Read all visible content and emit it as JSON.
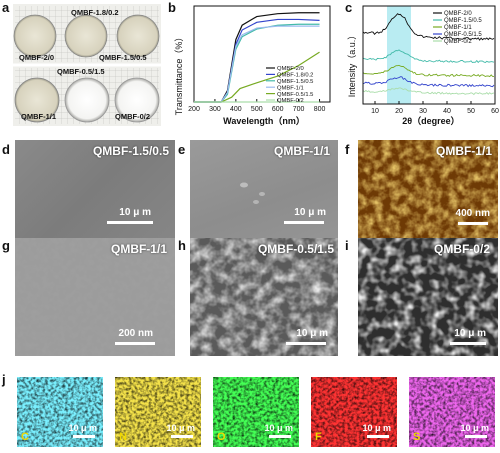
{
  "panel_letters": {
    "a": "a",
    "b": "b",
    "c": "c",
    "d": "d",
    "e": "e",
    "f": "f",
    "g": "g",
    "h": "h",
    "i": "i",
    "j": "j"
  },
  "panel_a": {
    "dishes": [
      "QMBF-1.8/0.2",
      "QMBF-2/0",
      "QMBF-1.5/0.5",
      "QMBF-0.5/1.5",
      "QMBF-1/1",
      "QMBF-0/2"
    ]
  },
  "chart_data": [
    {
      "type": "line",
      "panel": "b",
      "xlabel": "Wavelength（nm）",
      "ylabel": "Transmittance（%）",
      "xlim": [
        200,
        850
      ],
      "xticks": [
        "200",
        "300",
        "400",
        "500",
        "600",
        "700",
        "800"
      ],
      "ylim": [
        0,
        100
      ],
      "legend": "bottom-right",
      "series": [
        {
          "name": "QMBF-2/0",
          "color": "#111111",
          "x": [
            200,
            330,
            360,
            400,
            430,
            500,
            600,
            700,
            800
          ],
          "y": [
            0,
            0,
            12,
            65,
            80,
            89,
            92,
            93,
            93
          ]
        },
        {
          "name": "QMBF-1.8/0.2",
          "color": "#3344cc",
          "x": [
            200,
            330,
            360,
            400,
            430,
            500,
            600,
            700,
            800
          ],
          "y": [
            0,
            0,
            10,
            60,
            75,
            83,
            86,
            86,
            85
          ]
        },
        {
          "name": "QMBF-1.5/0.5",
          "color": "#44bbaa",
          "x": [
            200,
            330,
            360,
            400,
            430,
            500,
            600,
            700,
            800
          ],
          "y": [
            0,
            0,
            8,
            55,
            68,
            76,
            80,
            81,
            81
          ]
        },
        {
          "name": "QMBF-1/1",
          "color": "#99bbee",
          "x": [
            200,
            330,
            360,
            400,
            430,
            500,
            600,
            700,
            800
          ],
          "y": [
            0,
            0,
            10,
            58,
            70,
            77,
            79,
            79,
            79
          ]
        },
        {
          "name": "QMBF-0.5/1.5",
          "color": "#77aa22",
          "x": [
            200,
            330,
            380,
            420,
            500,
            600,
            700,
            800
          ],
          "y": [
            0,
            0,
            5,
            14,
            20,
            27,
            38,
            52
          ]
        },
        {
          "name": "QMBF-0/2",
          "color": "#aaddaa",
          "x": [
            200,
            800
          ],
          "y": [
            0,
            0
          ]
        }
      ]
    },
    {
      "type": "line",
      "panel": "c",
      "xlabel": "2θ（degree）",
      "ylabel": "Intensity（a.u.）",
      "xlim": [
        5,
        60
      ],
      "xticks": [
        "10",
        "20",
        "30",
        "40",
        "50",
        "60"
      ],
      "highlight_range": [
        15,
        25
      ],
      "legend": "top-right",
      "series": [
        {
          "name": "QMBF-2/0",
          "color": "#111111"
        },
        {
          "name": "QMBF-1.5/0.5",
          "color": "#44bbaa"
        },
        {
          "name": "QMBF-1/1",
          "color": "#77aa22"
        },
        {
          "name": "QMBF-0.5/1.5",
          "color": "#3344cc"
        },
        {
          "name": "QMBF-0/2",
          "color": "#aaddaa"
        }
      ]
    }
  ],
  "panels": {
    "d": {
      "label": "QMBF-1.5/0.5",
      "scale": "10 μ m"
    },
    "e": {
      "label": "QMBF-1/1",
      "scale": "10 μ m"
    },
    "f": {
      "label": "QMBF-1/1",
      "scale": "400 nm"
    },
    "g": {
      "label": "QMBF-1/1",
      "scale": "200 nm"
    },
    "h": {
      "label": "QMBF-0.5/1.5",
      "scale": "10 μ m"
    },
    "i": {
      "label": "QMBF-0/2",
      "scale": "10 μ m"
    }
  },
  "panel_j": {
    "elements": [
      {
        "symbol": "C",
        "scale": "10 μ m",
        "bg": "#0a8fa0",
        "fg": "#7af0ff",
        "lbl": "#f0d800"
      },
      {
        "symbol": "N",
        "scale": "10 μ m",
        "bg": "#8c7a0a",
        "fg": "#f4e24a",
        "lbl": "#f0d800"
      },
      {
        "symbol": "O",
        "scale": "10 μ m",
        "bg": "#0a9a1a",
        "fg": "#44ff55",
        "lbl": "#f0d800"
      },
      {
        "symbol": "F",
        "scale": "10 μ m",
        "bg": "#b00000",
        "fg": "#ff3333",
        "lbl": "#f0d800"
      },
      {
        "symbol": "S",
        "scale": "10 μ m",
        "bg": "#a020a0",
        "fg": "#ee66ee",
        "lbl": "#f0d800"
      }
    ]
  }
}
